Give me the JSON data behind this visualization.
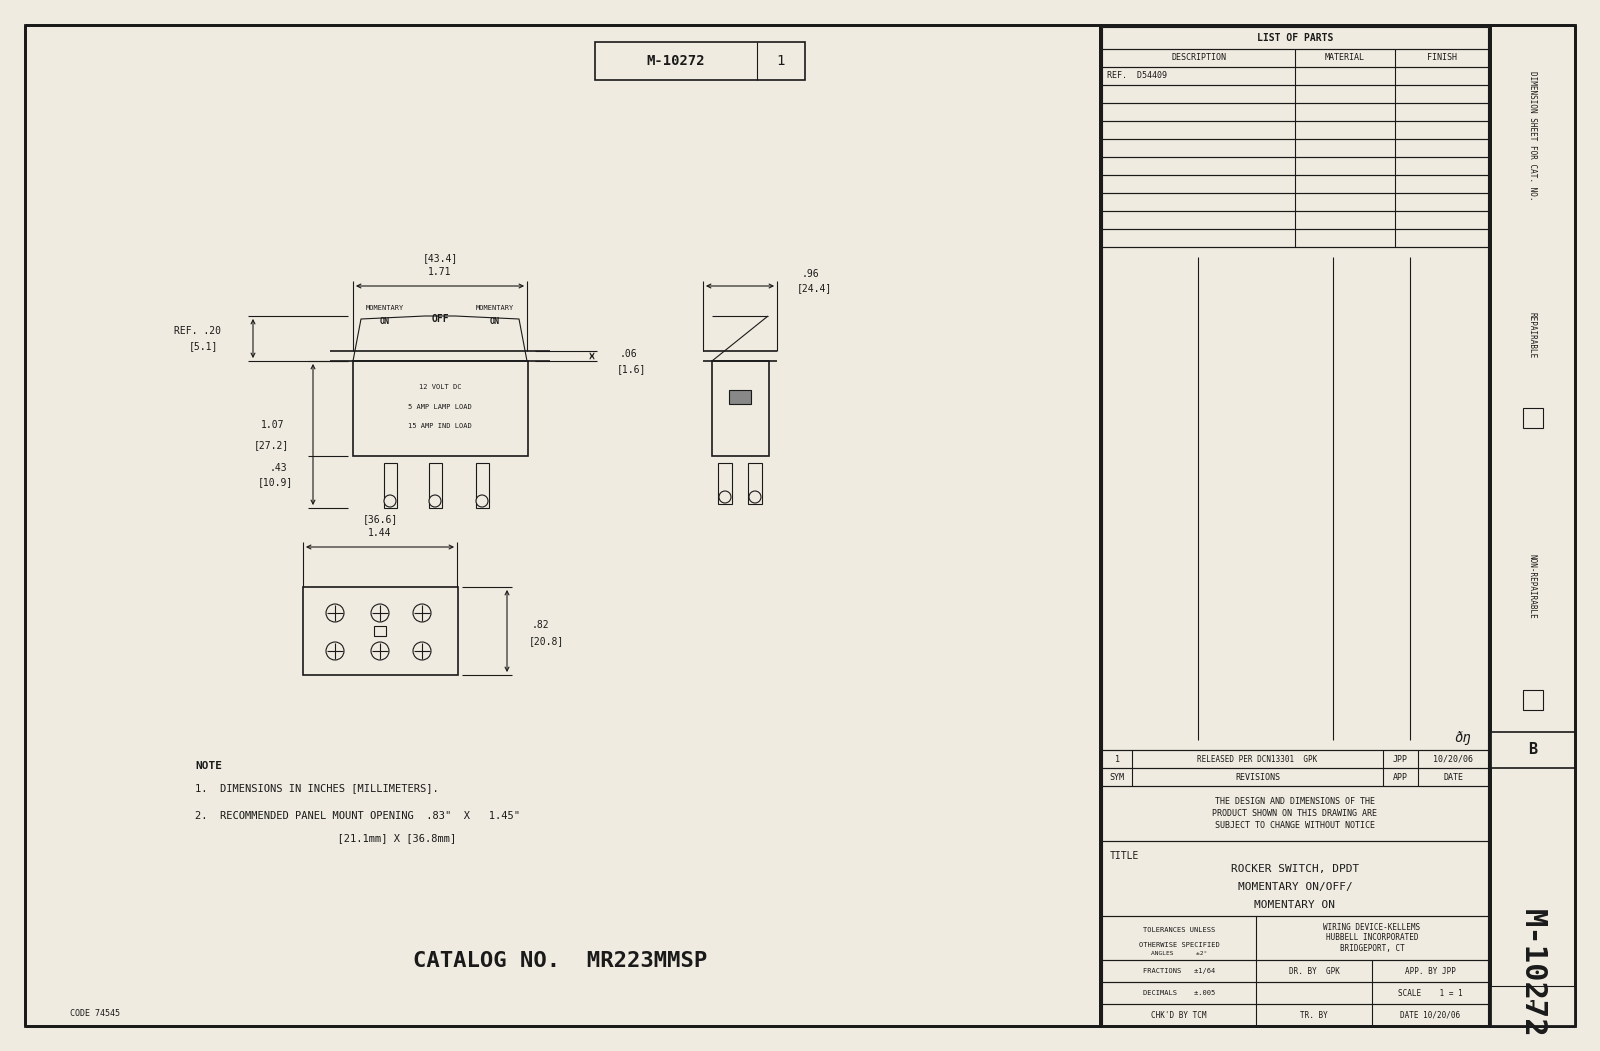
{
  "bg_color": "#f0ebe0",
  "line_color": "#1a1a1a",
  "list_of_parts_title": "LIST OF PARTS",
  "col_description": "DESCRIPTION",
  "col_material": "MATERIAL",
  "col_finish": "FINISH",
  "ref_d54409": "REF.  D54409",
  "dim_sheet_text": "DIMENSION SHEET FOR CAT. NO.",
  "repairable_text": "REPAIRABLE",
  "non_repairable_text": "NON-REPAIRABLE",
  "sym_label": "SYM",
  "revisions_label": "REVISIONS",
  "app_label": "APP",
  "date_label": "DATE",
  "rev1_sym": "1",
  "rev1_text": "RELEASED PER DCN13301  GPK",
  "rev1_app": "JPP",
  "rev1_date": "10/20/06",
  "design_notice_l1": "THE DESIGN AND DIMENSIONS OF THE",
  "design_notice_l2": "PRODUCT SHOWN ON THIS DRAWING ARE",
  "design_notice_l3": "SUBJECT TO CHANGE WITHOUT NOTICE",
  "title_label": "TITLE",
  "title_text1": "ROCKER SWITCH, DPDT",
  "title_text2": "MOMENTARY ON/OFF/",
  "title_text3": "MOMENTARY ON",
  "tol_l1": "TOLERANCES UNLESS",
  "tol_l2": "OTHERWISE SPECIFIED",
  "company_l1": "WIRING DEVICE-KELLEMS",
  "company_l2": "HUBBELL INCORPORATED",
  "company_l3": "BRIDGEPORT, CT",
  "fractions_label": "FRACTIONS   ±1/64",
  "decimals_label": "DECIMALS    ±.005",
  "angles_label": "ANGLES      ±2°",
  "dr_by": "DR. BY  GPK",
  "app_by": "APP. BY JPP",
  "tr_by": "TR. BY",
  "scale_label": "SCALE    1 = 1",
  "chkd_by": "CHK'D BY TCM",
  "date_final": "DATE 10/20/06",
  "drawing_no_side": "M-10272",
  "rev_letter": "B",
  "code_no": "CODE 74545",
  "catalog_no": "CATALOG NO.  MR223MMSP",
  "note_line1": "NOTE",
  "note_line2": "1.  DIMENSIONS IN INCHES [MILLIMETERS].",
  "note_line3": "2.  RECOMMENDED PANEL MOUNT OPENING  .83\"  X   1.45\"",
  "note_line4": "              [21.1mm] X [36.8mm]"
}
